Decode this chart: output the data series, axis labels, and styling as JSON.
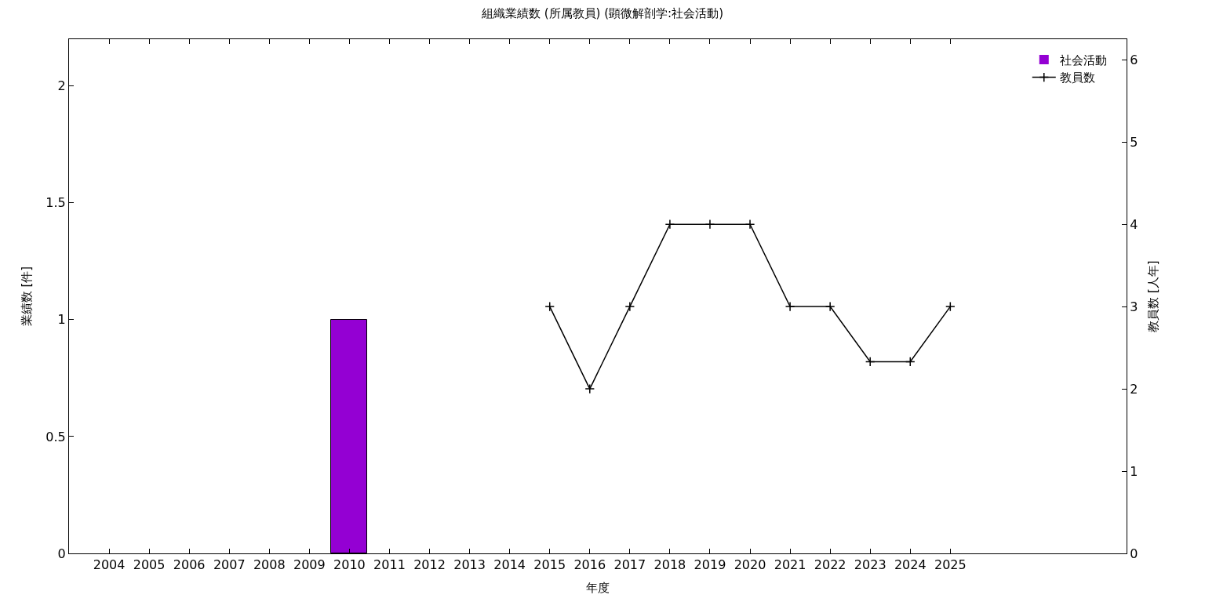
{
  "chart_data": {
    "type": "bar",
    "title": "組織業績数 (所属教員) (顕微解剖学:社会活動)",
    "xlabel": "年度",
    "ylabel": "業績数 [件]",
    "y2label": "教員数 [人年]",
    "x": [
      2004,
      2005,
      2006,
      2007,
      2008,
      2009,
      2010,
      2011,
      2012,
      2013,
      2014,
      2015,
      2016,
      2017,
      2018,
      2019,
      2020,
      2021,
      2022,
      2023,
      2024,
      2025
    ],
    "xlim": [
      2003,
      2029.4
    ],
    "xticks": [
      2004,
      2005,
      2006,
      2007,
      2008,
      2009,
      2010,
      2011,
      2012,
      2013,
      2014,
      2015,
      2016,
      2017,
      2018,
      2019,
      2020,
      2021,
      2022,
      2023,
      2024,
      2025
    ],
    "ylim": [
      0,
      2.2
    ],
    "yticks": [
      0,
      0.5,
      1,
      1.5,
      2
    ],
    "y2lim": [
      0,
      6.25
    ],
    "y2ticks": [
      0,
      1,
      2,
      3,
      4,
      5,
      6
    ],
    "series": [
      {
        "name": "社会活動",
        "color": "#9400d3",
        "values": [
          0,
          0,
          0,
          0,
          0,
          0,
          1,
          0,
          0,
          0,
          0,
          0,
          0,
          0,
          0,
          0,
          0,
          0,
          0,
          0,
          0,
          0
        ]
      },
      {
        "name": "教員数",
        "type": "line",
        "axis": "y2",
        "color": "#000000",
        "marker": "cross",
        "values": [
          null,
          null,
          null,
          null,
          null,
          null,
          null,
          null,
          null,
          null,
          null,
          3,
          2,
          3,
          4,
          4,
          4,
          3,
          3,
          2.33,
          2.33,
          3
        ]
      }
    ],
    "legend": "top right"
  }
}
